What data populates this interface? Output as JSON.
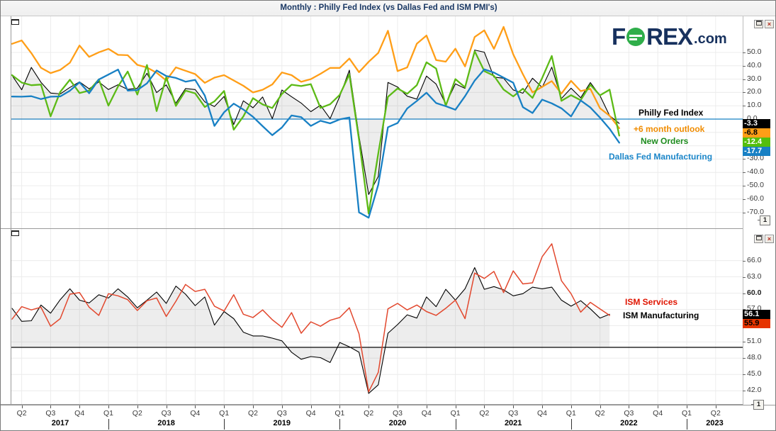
{
  "window": {
    "title": "Monthly : Philly Fed Index (vs Dallas Fed and ISM PMI's)",
    "controls": {
      "close_glyph": "×",
      "pane_badge": "1"
    }
  },
  "logo": {
    "f": "F",
    "rex": "REX",
    "dotcom": ".com"
  },
  "x_axis": {
    "quarters": [
      "Q2",
      "Q3",
      "Q4",
      "Q1",
      "Q2",
      "Q3",
      "Q4",
      "Q1",
      "Q2",
      "Q3",
      "Q4",
      "Q1",
      "Q2",
      "Q3",
      "Q4",
      "Q1",
      "Q2",
      "Q3",
      "Q4",
      "Q1",
      "Q2",
      "Q3",
      "Q4",
      "Q1",
      "Q2"
    ],
    "years": [
      "2017",
      "2018",
      "2019",
      "2020",
      "2021",
      "2022",
      "2023"
    ]
  },
  "chart_data": [
    {
      "type": "line",
      "panel": "top",
      "frequency": "monthly",
      "start_month": "2017-03",
      "end_month": "2022-06",
      "ylim": [
        -78,
        77
      ],
      "grid": true,
      "baseline": {
        "value": 0,
        "color": "#1880c4"
      },
      "grid_values": [
        50,
        40,
        30,
        20,
        10,
        0,
        -10,
        -20,
        -30,
        -40,
        -50,
        -60,
        -70
      ],
      "yticks": [
        {
          "v": 50,
          "label": "50.0"
        },
        {
          "v": 40,
          "label": "40.0"
        },
        {
          "v": 30,
          "label": "30.0"
        },
        {
          "v": 20,
          "label": "20.0"
        },
        {
          "v": 10,
          "label": "10.0"
        },
        {
          "v": 0,
          "label": "0.0"
        },
        {
          "v": -30,
          "label": "-30.0"
        },
        {
          "v": -40,
          "label": "-40.0"
        },
        {
          "v": -50,
          "label": "-50.0"
        },
        {
          "v": -60,
          "label": "-60.0"
        },
        {
          "v": -70,
          "label": "-70.0"
        }
      ],
      "series": [
        {
          "name": "Philly Fed Index",
          "color": "#000000",
          "label_color": "#000000",
          "width": 1.1,
          "fill_to_baseline": true,
          "last_value": -3.3,
          "last_value_label": "-3.3",
          "box": {
            "bg": "#000000",
            "fg": "#ffffff"
          },
          "values": [
            32.8,
            22.0,
            38.8,
            27.6,
            19.5,
            18.9,
            23.8,
            27.9,
            22.7,
            27.9,
            22.2,
            25.8,
            22.3,
            23.2,
            34.4,
            19.9,
            25.7,
            11.9,
            22.9,
            22.2,
            12.9,
            9.4,
            17.0,
            -4.1,
            13.7,
            8.5,
            16.6,
            0.3,
            21.8,
            16.8,
            12.0,
            5.6,
            10.4,
            0.3,
            17.0,
            36.7,
            -12.7,
            -56.6,
            -43.1,
            27.5,
            24.1,
            17.2,
            15.0,
            32.3,
            26.3,
            11.1,
            26.5,
            23.1,
            51.8,
            50.2,
            31.5,
            30.7,
            21.9,
            19.4,
            30.7,
            23.8,
            39.0,
            15.4,
            23.2,
            16.0,
            27.4,
            17.6,
            2.6,
            -3.3
          ]
        },
        {
          "name": "+6 month outlook",
          "color": "#ff9e17",
          "label_color": "#f08c00",
          "width": 2.3,
          "fill_to_baseline": false,
          "last_value": -6.8,
          "last_value_label": "-6.8",
          "box": {
            "bg": "#ff9e17",
            "fg": "#000000"
          },
          "values": [
            56.5,
            59.0,
            49.5,
            38.5,
            34.5,
            36.9,
            42.3,
            55.2,
            46.7,
            50.1,
            52.7,
            48.2,
            47.9,
            40.7,
            38.7,
            34.8,
            29.0,
            38.8,
            36.3,
            33.8,
            27.2,
            31.1,
            33.0,
            29.0,
            25.0,
            20.0,
            22.0,
            26.0,
            35.0,
            33.0,
            28.0,
            30.0,
            34.0,
            38.4,
            38.4,
            45.4,
            35.2,
            43.0,
            49.7,
            66.3,
            36.0,
            38.8,
            56.6,
            62.7,
            44.3,
            43.1,
            52.8,
            39.5,
            61.6,
            66.6,
            52.7,
            69.2,
            48.6,
            33.7,
            20.0,
            24.2,
            28.5,
            19.1,
            28.7,
            21.0,
            22.7,
            8.2,
            2.5,
            -6.8
          ]
        },
        {
          "name": "New Orders",
          "color": "#5cba16",
          "label_color": "#1e8c1e",
          "width": 2.3,
          "fill_to_baseline": false,
          "last_value": -12.4,
          "last_value_label": "-12.4",
          "box": {
            "bg": "#54be0d",
            "fg": "#ffffff"
          },
          "values": [
            33.0,
            27.4,
            25.4,
            25.9,
            2.1,
            20.4,
            29.5,
            19.6,
            21.4,
            29.8,
            10.1,
            24.5,
            35.7,
            18.4,
            40.6,
            6.0,
            31.4,
            9.9,
            21.4,
            19.3,
            9.1,
            13.3,
            21.1,
            -8.0,
            2.0,
            15.7,
            11.0,
            8.3,
            18.9,
            25.8,
            24.8,
            26.2,
            8.4,
            11.1,
            18.2,
            33.6,
            -15.5,
            -70.9,
            -25.7,
            16.7,
            23.0,
            19.0,
            25.5,
            42.6,
            37.9,
            10.0,
            30.0,
            23.9,
            50.9,
            36.0,
            32.5,
            22.2,
            17.0,
            22.8,
            15.9,
            30.8,
            47.4,
            13.7,
            17.9,
            14.2,
            25.8,
            17.8,
            22.1,
            -12.4
          ]
        },
        {
          "name": "Dallas Fed Manufacturing",
          "color": "#1880c4",
          "label_color": "#1b86c9",
          "width": 2.3,
          "fill_to_baseline": false,
          "last_value": -17.7,
          "last_value_label": "-17.7",
          "box": {
            "bg": "#1880c4",
            "fg": "#ffffff"
          },
          "values": [
            16.9,
            16.8,
            17.2,
            15.0,
            16.8,
            17.0,
            21.3,
            27.6,
            19.4,
            29.7,
            33.4,
            37.2,
            21.4,
            21.8,
            26.8,
            36.5,
            32.3,
            30.9,
            28.1,
            29.4,
            17.6,
            -5.1,
            5.1,
            11.6,
            7.2,
            1.7,
            -5.3,
            -12.1,
            -6.3,
            2.7,
            1.5,
            -5.1,
            -1.3,
            -3.2,
            -0.2,
            1.2,
            -70.0,
            -74.0,
            -49.2,
            -6.1,
            -3.0,
            8.0,
            13.6,
            19.8,
            12.0,
            9.7,
            7.0,
            17.2,
            28.9,
            37.3,
            34.9,
            31.1,
            27.3,
            9.0,
            4.6,
            14.6,
            11.8,
            8.1,
            2.0,
            14.0,
            8.7,
            1.1,
            -7.3,
            -17.7
          ]
        }
      ]
    },
    {
      "type": "line",
      "panel": "bottom",
      "frequency": "monthly",
      "start_month": "2017-03",
      "end_month": "2022-05",
      "ylim": [
        36,
        71
      ],
      "grid": true,
      "baseline": {
        "value": 50,
        "color": "#000000"
      },
      "grid_values": [
        66,
        63,
        60,
        57,
        54,
        51,
        48,
        45,
        42
      ],
      "yticks": [
        {
          "v": 66,
          "label": "66.0"
        },
        {
          "v": 63,
          "label": "63.0"
        },
        {
          "v": 60,
          "label": "60.0",
          "bold": true
        },
        {
          "v": 57,
          "label": "57.0"
        },
        {
          "v": 54,
          "label": "54.0"
        },
        {
          "v": 51,
          "label": "51.0"
        },
        {
          "v": 48,
          "label": "48.0"
        },
        {
          "v": 45,
          "label": "45.0"
        },
        {
          "v": 42,
          "label": "42.0"
        }
      ],
      "series": [
        {
          "name": "ISM Manufacturing",
          "color": "#000000",
          "label_color": "#000000",
          "width": 1.1,
          "fill_to_baseline": true,
          "last_value": 56.1,
          "last_value_label": "56.1",
          "box": {
            "bg": "#000000",
            "fg": "#ffffff"
          },
          "values": [
            57.2,
            54.8,
            54.9,
            57.8,
            56.3,
            58.8,
            60.8,
            58.7,
            58.2,
            59.7,
            59.1,
            60.8,
            59.3,
            57.3,
            58.7,
            60.2,
            58.1,
            61.3,
            59.8,
            57.7,
            59.3,
            54.1,
            56.6,
            55.3,
            52.8,
            52.1,
            52.1,
            51.7,
            51.2,
            49.1,
            47.8,
            48.3,
            48.1,
            47.2,
            50.9,
            50.1,
            49.1,
            41.5,
            43.1,
            52.6,
            54.2,
            56.0,
            55.4,
            59.3,
            57.5,
            60.7,
            58.7,
            60.8,
            64.7,
            60.7,
            61.2,
            60.6,
            59.5,
            59.9,
            61.1,
            60.8,
            61.1,
            58.7,
            57.6,
            58.6,
            57.1,
            55.4,
            56.1
          ]
        },
        {
          "name": "ISM Services",
          "color": "#e2482e",
          "label_color": "#e01400",
          "width": 1.5,
          "fill_to_baseline": false,
          "last_value": 55.9,
          "last_value_label": "55.9",
          "box": {
            "bg": "#e63400",
            "fg": "#000000"
          },
          "values": [
            55.2,
            57.5,
            56.9,
            57.4,
            53.9,
            55.3,
            59.8,
            60.1,
            57.4,
            55.9,
            59.9,
            59.5,
            58.8,
            56.8,
            58.6,
            59.1,
            55.7,
            58.5,
            61.6,
            60.3,
            60.7,
            57.6,
            56.7,
            59.7,
            56.1,
            55.5,
            56.9,
            55.1,
            53.7,
            56.4,
            52.6,
            54.7,
            53.9,
            55.0,
            55.5,
            57.3,
            52.5,
            41.8,
            45.4,
            57.1,
            58.1,
            56.9,
            57.8,
            56.6,
            55.9,
            57.2,
            58.7,
            55.3,
            63.7,
            62.7,
            64.0,
            60.1,
            64.1,
            61.7,
            61.9,
            66.7,
            69.1,
            62.3,
            59.9,
            56.5,
            58.3,
            57.1,
            55.9
          ]
        }
      ]
    }
  ]
}
